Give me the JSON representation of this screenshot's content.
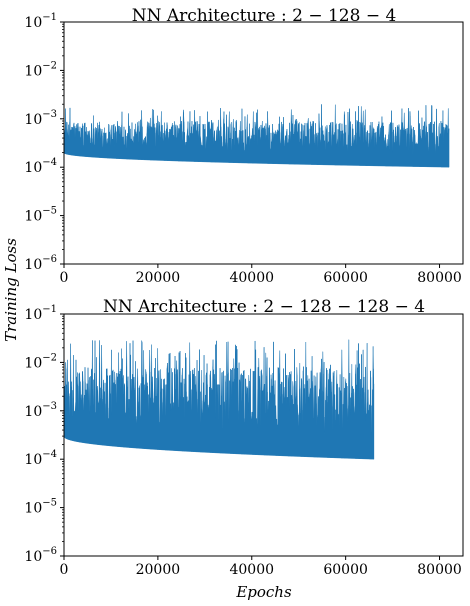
{
  "shared": {
    "xlabel": "Epochs",
    "ylabel": "Training Loss",
    "series_color": "#1f77b4"
  },
  "chart_data": [
    {
      "type": "line",
      "title": "NN Architecture : 2 − 128 − 4",
      "xlabel": "",
      "ylabel": "",
      "yscale": "log",
      "xlim": [
        0,
        85000
      ],
      "ylim": [
        1e-06,
        0.1
      ],
      "xticks": [
        0,
        20000,
        40000,
        60000,
        80000
      ],
      "xtick_labels": [
        "0",
        "20000",
        "40000",
        "60000",
        "80000"
      ],
      "yticks": [
        1e-06,
        1e-05,
        0.0001,
        0.001,
        0.01,
        0.1
      ],
      "ytick_labels": [
        {
          "base": "10",
          "exp": "−6"
        },
        {
          "base": "10",
          "exp": "−5"
        },
        {
          "base": "10",
          "exp": "−4"
        },
        {
          "base": "10",
          "exp": "−3"
        },
        {
          "base": "10",
          "exp": "−2"
        },
        {
          "base": "10",
          "exp": "−1"
        }
      ],
      "grid": false,
      "series": [
        {
          "x_range": [
            0,
            82000
          ],
          "baseline_start": 0.0002,
          "baseline_end": 0.0001,
          "spike_typical": 0.0009,
          "spike_max": 0.002,
          "color": "#1f77b4"
        }
      ]
    },
    {
      "type": "line",
      "title": "NN Architecture : 2 − 128 − 128 − 4",
      "xlabel": "",
      "ylabel": "",
      "yscale": "log",
      "xlim": [
        0,
        85000
      ],
      "ylim": [
        1e-06,
        0.1
      ],
      "xticks": [
        0,
        20000,
        40000,
        60000,
        80000
      ],
      "xtick_labels": [
        "0",
        "20000",
        "40000",
        "60000",
        "80000"
      ],
      "yticks": [
        1e-06,
        1e-05,
        0.0001,
        0.001,
        0.01,
        0.1
      ],
      "ytick_labels": [
        {
          "base": "10",
          "exp": "−6"
        },
        {
          "base": "10",
          "exp": "−5"
        },
        {
          "base": "10",
          "exp": "−4"
        },
        {
          "base": "10",
          "exp": "−3"
        },
        {
          "base": "10",
          "exp": "−2"
        },
        {
          "base": "10",
          "exp": "−1"
        }
      ],
      "grid": false,
      "series": [
        {
          "x_range": [
            0,
            66000
          ],
          "baseline_start": 0.0003,
          "baseline_end": 0.0001,
          "spike_typical": 0.008,
          "spike_max": 0.03,
          "color": "#1f77b4"
        }
      ]
    }
  ]
}
